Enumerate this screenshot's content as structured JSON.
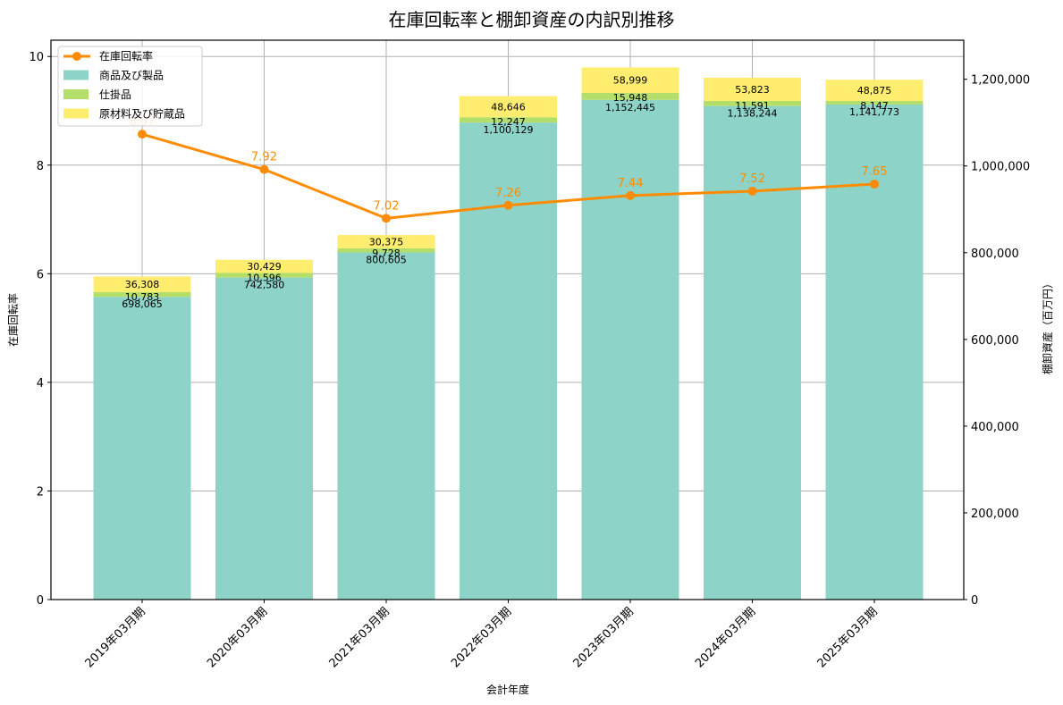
{
  "title": "在庫回転率と棚卸資産の内訳別推移",
  "xlabel": "会計年度",
  "ylabel_left": "在庫回転率",
  "ylabel_right": "棚卸資産（百万円）",
  "legend": [
    {
      "label": "在庫回転率",
      "color": "#ff8c00",
      "kind": "line"
    },
    {
      "label": "商品及び製品",
      "color": "#8dd3c7",
      "kind": "bar"
    },
    {
      "label": "仕掛品",
      "color": "#b3de69",
      "kind": "bar"
    },
    {
      "label": "原材料及び貯蔵品",
      "color": "#ffed6f",
      "kind": "bar"
    }
  ],
  "chart_data": {
    "type": "bar",
    "subtype": "stacked bar + line (dual axis)",
    "title": "在庫回転率と棚卸資産の内訳別推移",
    "xlabel": "会計年度",
    "ylabel": "在庫回転率",
    "ylabel_right": "棚卸資産（百万円）",
    "categories": [
      "2019年03月期",
      "2020年03月期",
      "2021年03月期",
      "2022年03月期",
      "2023年03月期",
      "2024年03月期",
      "2025年03月期"
    ],
    "series": [
      {
        "name": "商品及び製品",
        "type": "bar",
        "axis": "right",
        "color": "#8dd3c7",
        "values": [
          698065,
          742580,
          800605,
          1100129,
          1152445,
          1138244,
          1141773
        ]
      },
      {
        "name": "仕掛品",
        "type": "bar",
        "axis": "right",
        "color": "#b3de69",
        "values": [
          10783,
          10596,
          9728,
          12247,
          15948,
          11591,
          8147
        ]
      },
      {
        "name": "原材料及び貯蔵品",
        "type": "bar",
        "axis": "right",
        "color": "#ffed6f",
        "values": [
          36308,
          30429,
          30375,
          48646,
          58999,
          53823,
          48875
        ]
      },
      {
        "name": "在庫回転率",
        "type": "line",
        "axis": "left",
        "color": "#ff8c00",
        "values": [
          8.57,
          7.92,
          7.02,
          7.26,
          7.44,
          7.52,
          7.65
        ]
      }
    ],
    "ylim": [
      0,
      10.3
    ],
    "ylim_right": [
      0,
      1290000
    ],
    "yticks_left": [
      0,
      2,
      4,
      6,
      8,
      10
    ],
    "yticks_right": [
      0,
      200000,
      400000,
      600000,
      800000,
      1000000,
      1200000
    ],
    "yticks_right_labels": [
      "0",
      "200,000",
      "400,000",
      "600,000",
      "800,000",
      "1,000,000",
      "1,200,000"
    ],
    "grid": true,
    "legend_position": "upper left"
  }
}
